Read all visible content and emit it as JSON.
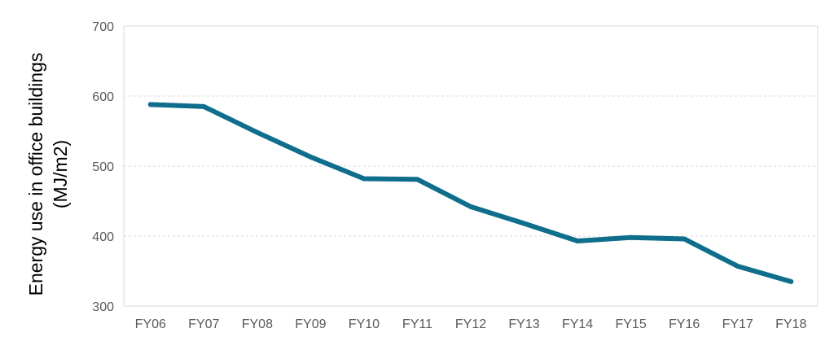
{
  "chart_data": {
    "type": "line",
    "categories": [
      "FY06",
      "FY07",
      "FY08",
      "FY09",
      "FY10",
      "FY11",
      "FY12",
      "FY13",
      "FY14",
      "FY15",
      "FY16",
      "FY17",
      "FY18"
    ],
    "series": [
      {
        "values": [
          588,
          585,
          548,
          513,
          482,
          481,
          442,
          418,
          393,
          398,
          396,
          357,
          335
        ]
      }
    ],
    "ylabel": [
      "Energy use in office buildings",
      "(MJ/m2)"
    ],
    "ylim": [
      300,
      700
    ],
    "yticks": [
      "300",
      "400",
      "500",
      "600",
      "700"
    ],
    "grid": true,
    "line_color": "#0e6e8c"
  }
}
